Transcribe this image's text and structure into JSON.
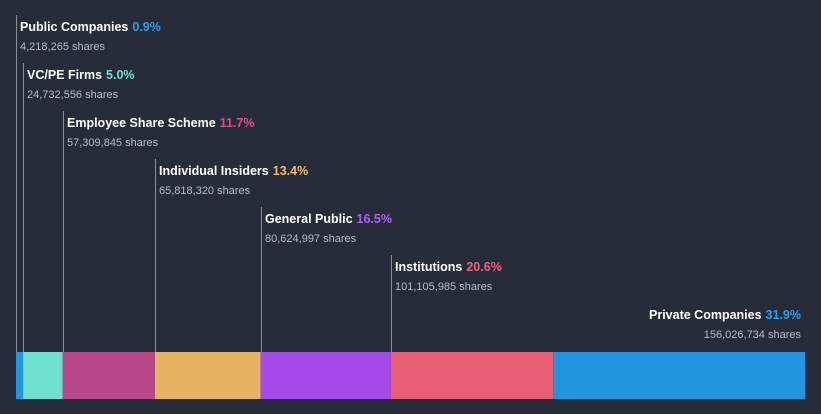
{
  "chart_data": {
    "type": "bar",
    "subtype": "stacked-horizontal-ownership",
    "categories": [
      "Public Companies",
      "VC/PE Firms",
      "Employee Share Scheme",
      "Individual Insiders",
      "General Public",
      "Institutions",
      "Private Companies"
    ],
    "percent_labels": [
      "0.9%",
      "5.0%",
      "11.7%",
      "13.4%",
      "16.5%",
      "20.6%",
      "31.9%"
    ],
    "values": [
      0.9,
      5.0,
      11.7,
      13.4,
      16.5,
      20.6,
      31.9
    ],
    "shares": [
      4218265,
      24732556,
      57309845,
      65818320,
      80624997,
      101105985,
      156026734
    ],
    "shares_labels": [
      "4,218,265 shares",
      "24,732,556 shares",
      "57,309,845 shares",
      "65,818,320 shares",
      "80,624,997 shares",
      "101,105,985 shares",
      "156,026,734 shares"
    ],
    "colors": [
      "#2394df",
      "#6fe0cd",
      "#b8478c",
      "#e6b263",
      "#a64bea",
      "#e85e75",
      "#2394df"
    ],
    "label_colors": [
      "#2d9ef0",
      "#6fe0cd",
      "#e0508f",
      "#f0bb6a",
      "#b35df5",
      "#f2607a",
      "#2d9ef0"
    ],
    "grid": false,
    "legend": "none"
  }
}
